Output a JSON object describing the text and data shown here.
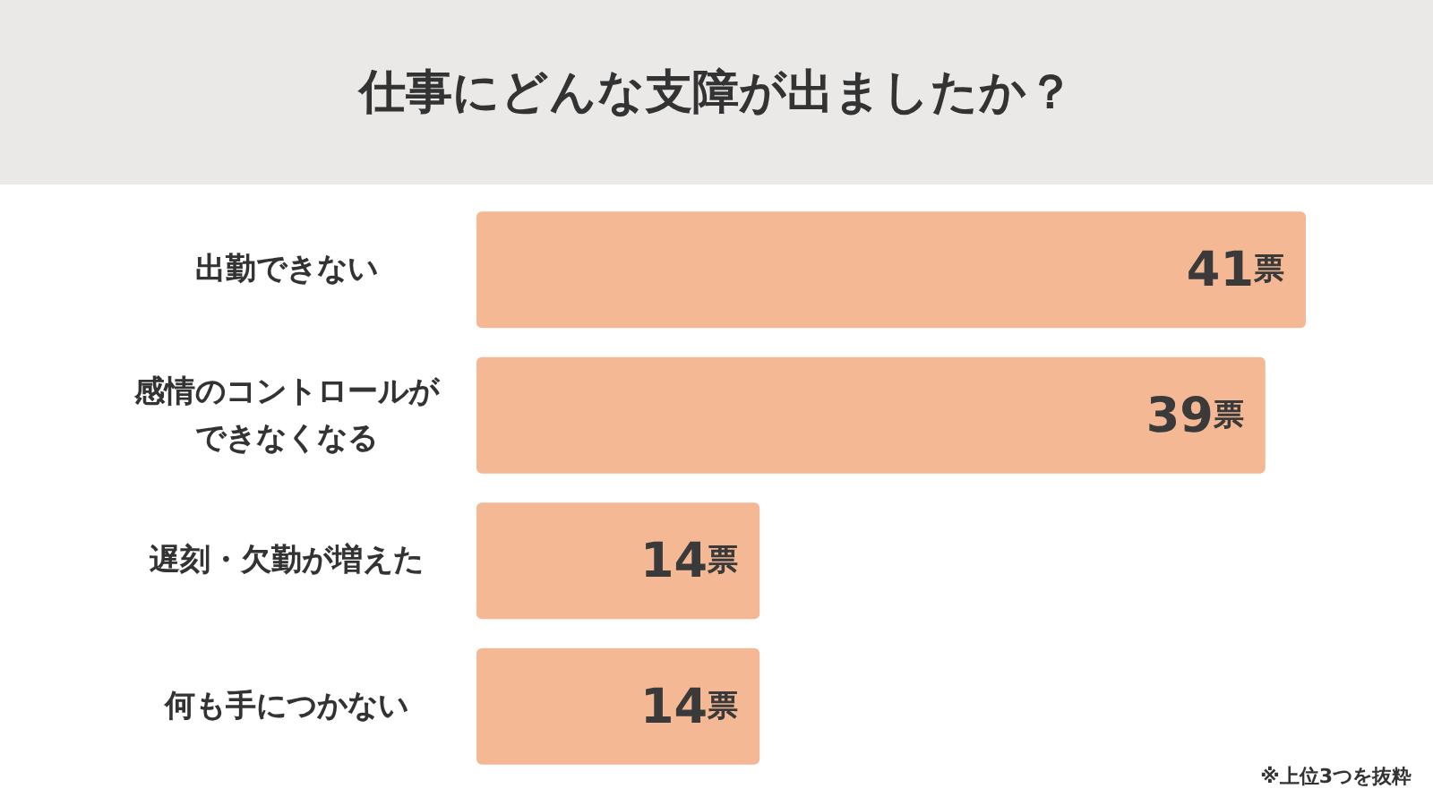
{
  "chart_data": {
    "type": "bar",
    "orientation": "horizontal",
    "title": "仕事にどんな支障が出ましたか？",
    "categories": [
      "出勤できない",
      "感情のコントロールができなくなる",
      "遅刻・欠勤が増えた",
      "何も手につかない"
    ],
    "values": [
      41,
      39,
      14,
      14
    ],
    "color": "#f4b894",
    "value_labels": [
      "41票",
      "39票",
      "14票",
      "14票"
    ],
    "xlim": [
      0,
      41
    ],
    "annotations": [
      "※上位3つを抜粋"
    ]
  }
}
